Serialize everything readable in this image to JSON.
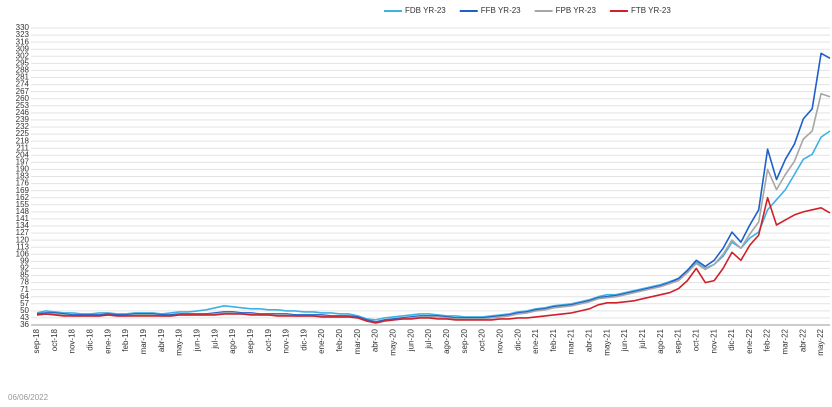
{
  "chart_data": {
    "type": "line",
    "categories": [
      "sep-18",
      null,
      "oct-18",
      null,
      "nov-18",
      null,
      "dic-18",
      null,
      "ene-19",
      null,
      "feb-19",
      null,
      "mar-19",
      null,
      "abr-19",
      null,
      "may-19",
      null,
      "jun-19",
      null,
      "jul-19",
      null,
      "ago-19",
      null,
      "sep-19",
      null,
      "oct-19",
      null,
      "nov-19",
      null,
      "dic-19",
      null,
      "ene-20",
      null,
      "feb-20",
      null,
      "mar-20",
      null,
      "abr-20",
      null,
      "may-20",
      null,
      "jun-20",
      null,
      "jul-20",
      null,
      "ago-20",
      null,
      "sep-20",
      null,
      "oct-20",
      null,
      "nov-20",
      null,
      "dic-20",
      null,
      "ene-21",
      null,
      "feb-21",
      null,
      "mar-21",
      null,
      "abr-21",
      null,
      "may-21",
      null,
      "jun-21",
      null,
      "jul-21",
      null,
      "ago-21",
      null,
      "sep-21",
      null,
      "oct-21",
      null,
      "nov-21",
      null,
      "dic-21",
      null,
      "ene-22",
      null,
      "feb-22",
      null,
      "mar-22",
      null,
      "abr-22",
      null,
      "may-22",
      null
    ],
    "series": [
      {
        "name": "FDB YR-23",
        "color": "#3fb1e3",
        "values": [
          48,
          50,
          49,
          48,
          48,
          47,
          47,
          48,
          48,
          47,
          47,
          48,
          48,
          48,
          47,
          48,
          49,
          49,
          50,
          51,
          53,
          55,
          54,
          53,
          52,
          52,
          51,
          51,
          50,
          50,
          49,
          49,
          48,
          48,
          47,
          47,
          45,
          42,
          41,
          43,
          44,
          45,
          46,
          47,
          47,
          46,
          45,
          45,
          44,
          44,
          44,
          45,
          46,
          47,
          49,
          50,
          52,
          53,
          55,
          56,
          57,
          59,
          61,
          64,
          66,
          66,
          68,
          70,
          72,
          74,
          76,
          79,
          82,
          88,
          98,
          92,
          96,
          104,
          118,
          112,
          122,
          128,
          150,
          160,
          170,
          185,
          200,
          205,
          222,
          228
        ]
      },
      {
        "name": "FFB YR-23",
        "color": "#1f5fc9",
        "values": [
          47,
          48,
          48,
          47,
          46,
          46,
          46,
          46,
          47,
          46,
          46,
          47,
          47,
          47,
          46,
          46,
          47,
          47,
          47,
          47,
          48,
          49,
          49,
          48,
          48,
          47,
          47,
          47,
          47,
          46,
          46,
          46,
          46,
          45,
          45,
          45,
          44,
          41,
          39,
          41,
          42,
          43,
          44,
          45,
          45,
          45,
          44,
          43,
          43,
          43,
          43,
          44,
          45,
          46,
          48,
          49,
          51,
          52,
          54,
          55,
          56,
          58,
          60,
          63,
          64,
          65,
          67,
          69,
          71,
          73,
          75,
          78,
          82,
          90,
          100,
          94,
          100,
          112,
          128,
          118,
          135,
          150,
          210,
          180,
          200,
          215,
          240,
          250,
          305,
          300
        ]
      },
      {
        "name": "FPB YR-23",
        "color": "#a6a6a6",
        "values": [
          46,
          47,
          47,
          46,
          45,
          45,
          45,
          45,
          46,
          45,
          45,
          46,
          46,
          46,
          45,
          45,
          46,
          46,
          46,
          46,
          47,
          48,
          48,
          47,
          47,
          46,
          46,
          46,
          46,
          45,
          45,
          45,
          45,
          44,
          44,
          44,
          43,
          40,
          38,
          40,
          41,
          42,
          43,
          44,
          44,
          44,
          43,
          42,
          42,
          42,
          42,
          43,
          44,
          45,
          47,
          48,
          50,
          51,
          53,
          54,
          55,
          57,
          59,
          62,
          63,
          64,
          66,
          68,
          70,
          72,
          74,
          77,
          80,
          88,
          97,
          91,
          96,
          106,
          120,
          112,
          126,
          138,
          190,
          170,
          185,
          198,
          220,
          228,
          265,
          262
        ]
      },
      {
        "name": "FTB YR-23",
        "color": "#d0202a",
        "values": [
          46,
          47,
          46,
          45,
          45,
          45,
          45,
          45,
          46,
          45,
          45,
          45,
          45,
          45,
          45,
          45,
          46,
          46,
          46,
          46,
          46,
          47,
          47,
          47,
          46,
          46,
          46,
          45,
          45,
          45,
          45,
          45,
          44,
          44,
          44,
          44,
          43,
          40,
          38,
          40,
          41,
          42,
          42,
          43,
          43,
          42,
          42,
          41,
          41,
          41,
          41,
          41,
          42,
          42,
          43,
          43,
          44,
          45,
          46,
          47,
          48,
          50,
          52,
          56,
          58,
          58,
          59,
          60,
          62,
          64,
          66,
          68,
          72,
          80,
          92,
          78,
          80,
          92,
          108,
          100,
          115,
          125,
          162,
          135,
          140,
          145,
          148,
          150,
          152,
          147
        ]
      }
    ],
    "ylim": [
      36,
      330
    ],
    "yticks": [
      36,
      43,
      50,
      57,
      64,
      71,
      78,
      85,
      92,
      99,
      106,
      113,
      120,
      127,
      134,
      141,
      148,
      155,
      162,
      169,
      176,
      183,
      190,
      197,
      204,
      211,
      218,
      225,
      232,
      239,
      246,
      253,
      260,
      267,
      274,
      281,
      288,
      295,
      302,
      309,
      316,
      323,
      330
    ],
    "grid": true
  },
  "footer": "06/06/2022"
}
